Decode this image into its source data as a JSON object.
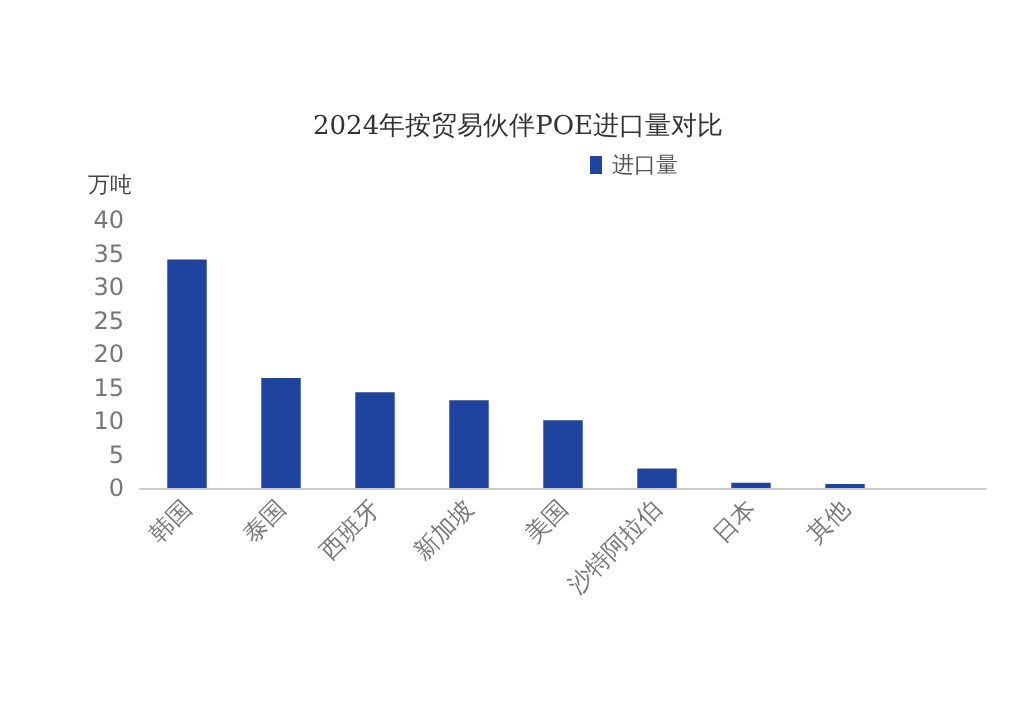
{
  "chart_data": {
    "type": "bar",
    "title": "2024年按贸易伙伴POE进口量对比",
    "ylabel": "万吨",
    "categories": [
      "韩国",
      "泰国",
      "西班牙",
      "新加坡",
      "美国",
      "沙特阿拉伯",
      "日本",
      "其他",
      null
    ],
    "series": [
      {
        "name": "进口量",
        "color": "#1f44a0",
        "values": [
          34.1,
          16.4,
          14.3,
          13.1,
          10.1,
          2.9,
          0.8,
          0.6,
          null
        ]
      }
    ],
    "ylim": [
      0,
      40
    ],
    "yticks": [
      0,
      5,
      10,
      15,
      20,
      25,
      30,
      35,
      40
    ],
    "grid": false,
    "legend": "top right"
  }
}
